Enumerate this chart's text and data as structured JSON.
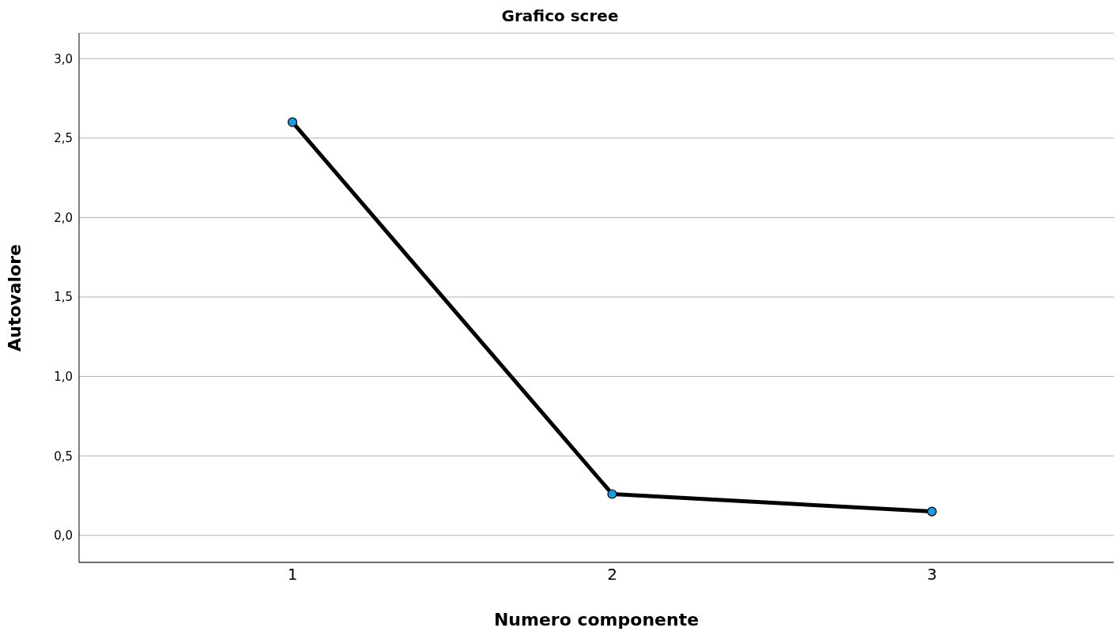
{
  "chart_data": {
    "type": "line",
    "title": "Grafico scree",
    "xlabel": "Numero componente",
    "ylabel": "Autovalore",
    "categories": [
      "1",
      "2",
      "3"
    ],
    "series": [
      {
        "color": "#000000",
        "values": [
          2.6,
          0.26,
          0.15
        ]
      }
    ],
    "ylim": [
      -0.17,
      3.16
    ],
    "yticks": [
      {
        "value": 0,
        "label": "0,0"
      },
      {
        "value": 0.5,
        "label": "0,5"
      },
      {
        "value": 1,
        "label": "1,0"
      },
      {
        "value": 1.5,
        "label": "1,5"
      },
      {
        "value": 2,
        "label": "2,0"
      },
      {
        "value": 2.5,
        "label": "2,5"
      },
      {
        "value": 3,
        "label": "3,0"
      }
    ],
    "grid": "y",
    "marker": "circle",
    "line_style": "solid"
  }
}
